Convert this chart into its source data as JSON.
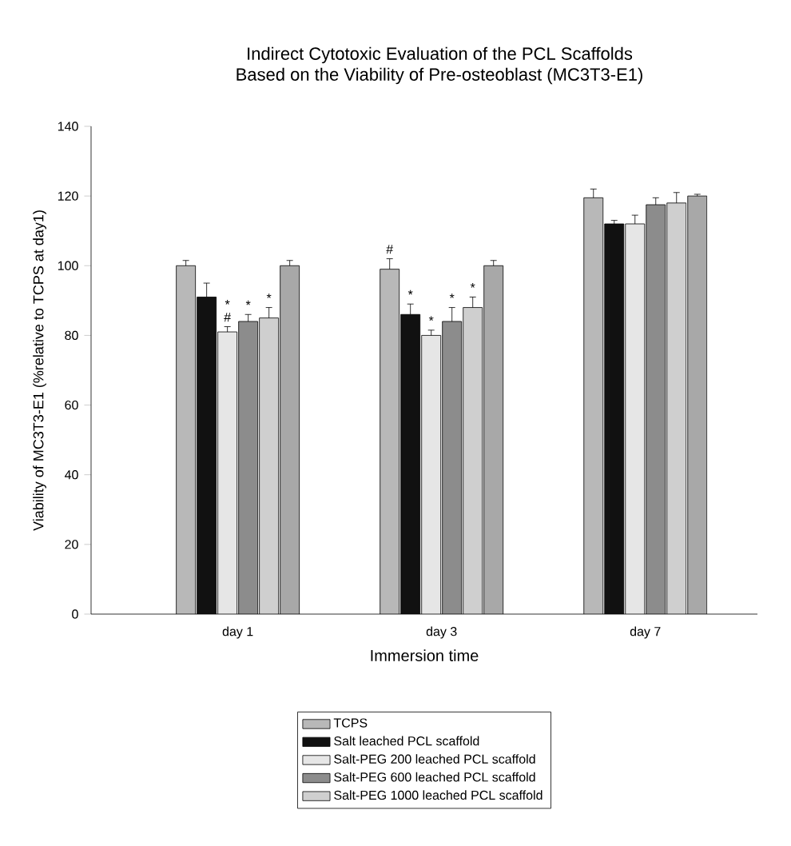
{
  "chart_data": {
    "type": "bar",
    "title": "Indirect Cytotoxic Evaluation of the PCL Scaffolds\nBased on the Viability of Pre-osteoblast (MC3T3-E1)",
    "xlabel": "Immersion time",
    "ylabel": "Viability of MC3T3-E1 (%relative to TCPS at day1)",
    "categories": [
      "day 1",
      "day 3",
      "day 7"
    ],
    "ylim": [
      0,
      140
    ],
    "yticks": [
      0,
      20,
      40,
      60,
      80,
      100,
      120,
      140
    ],
    "legend": "bottom",
    "series": [
      {
        "name": "TCPS",
        "color": "#b8b8b8",
        "values": [
          100,
          99,
          119.5
        ],
        "errors": [
          1.5,
          3,
          2.5
        ]
      },
      {
        "name": "Salt leached PCL scaffold",
        "color": "#111111",
        "values": [
          91,
          86,
          112
        ],
        "errors": [
          4,
          3,
          1
        ]
      },
      {
        "name": "Salt-PEG 200 leached PCL scaffold",
        "color": "#e6e6e6",
        "values": [
          81,
          80,
          112
        ],
        "errors": [
          1.5,
          1.5,
          2.5
        ]
      },
      {
        "name": "Salt-PEG 600 leached PCL scaffold",
        "color": "#8c8c8c",
        "values": [
          84,
          84,
          117.5
        ],
        "errors": [
          2,
          4,
          2
        ]
      },
      {
        "name": "Salt-PEG 1000 leached PCL scaffold",
        "color": "#cfcfcf",
        "values": [
          85,
          88,
          118
        ],
        "errors": [
          3,
          3,
          3
        ]
      },
      {
        "color": "#a8a8a8",
        "values": [
          100,
          100,
          120
        ],
        "errors": [
          1.5,
          1.5,
          0.5
        ]
      }
    ],
    "annotations": [
      "#",
      "*",
      "*",
      "*",
      "#",
      "*",
      "*",
      "*",
      "*"
    ]
  }
}
